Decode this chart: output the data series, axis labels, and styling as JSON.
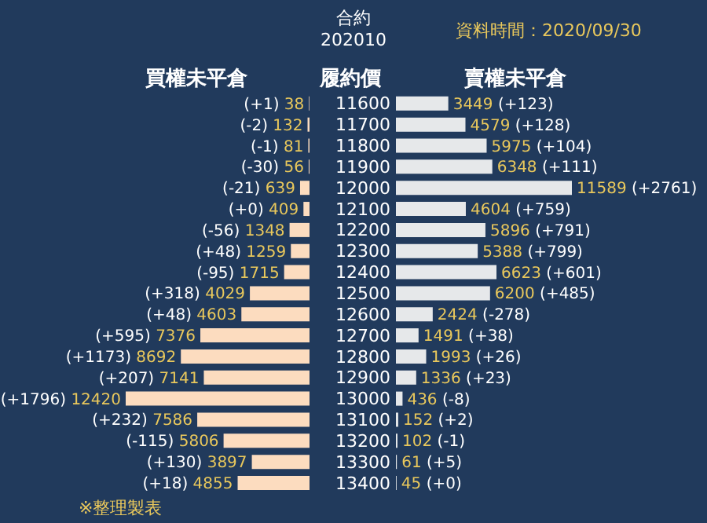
{
  "chart_data": [
    {
      "type": "bar",
      "orientation": "horizontal",
      "title": "合約",
      "subtitle": "202010",
      "xlabel": "買權未平倉",
      "ylabel": "履約價",
      "annotations": [
        "資料時間：2020/09/30",
        "※整理製表"
      ],
      "tick_labels": "y",
      "categories": [
        "11600",
        "11700",
        "11800",
        "11900",
        "12000",
        "12100",
        "12200",
        "12300",
        "12400",
        "12500",
        "12600",
        "12700",
        "12800",
        "12900",
        "13000",
        "13100",
        "13200",
        "13300",
        "13400"
      ],
      "series": [
        {
          "color": "#fcdcbf",
          "values": [
            38,
            132,
            81,
            56,
            639,
            409,
            1348,
            1259,
            1715,
            4029,
            4603,
            7376,
            8692,
            7141,
            12420,
            7586,
            5806,
            3897,
            4855
          ],
          "value_labels": [
            "(+1) 38",
            "(-2) 132",
            "(-1) 81",
            "(-30) 56",
            "(-21) 639",
            "(+0) 409",
            "(-56) 1348",
            "(+48) 1259",
            "(-95) 1715",
            "(+318) 4029",
            "(+48) 4603",
            "(+595) 7376",
            "(+1173) 8692",
            "(+207) 7141",
            "(+1796) 12420",
            "(+232) 7586",
            "(-115) 5806",
            "(+130) 3897",
            "(+18) 4855"
          ]
        }
      ]
    },
    {
      "type": "bar",
      "orientation": "horizontal",
      "xlabel": "賣權未平倉",
      "tick_labels": false,
      "categories": [
        "11600",
        "11700",
        "11800",
        "11900",
        "12000",
        "12100",
        "12200",
        "12300",
        "12400",
        "12500",
        "12600",
        "12700",
        "12800",
        "12900",
        "13000",
        "13100",
        "13200",
        "13300",
        "13400"
      ],
      "series": [
        {
          "color": "#e6e8ea",
          "values": [
            3449,
            4579,
            5975,
            6348,
            11589,
            4604,
            5896,
            5388,
            6623,
            6200,
            2424,
            1491,
            1993,
            1336,
            436,
            152,
            102,
            61,
            45
          ],
          "value_labels": [
            "3449 (+123)",
            "4579 (+128)",
            "5975 (+104)",
            "6348 (+111)",
            "11589 (+2761)",
            "4604 (+759)",
            "5896 (+791)",
            "5388 (+799)",
            "6623 (+601)",
            "6200 (+485)",
            "2424 (-278)",
            "1491 (+38)",
            "1993 (+26)",
            "1336 (+23)",
            "436 (-8)",
            "152 (+2)",
            "102 (-1)",
            "61 (+5)",
            "45 (+0)"
          ]
        }
      ]
    }
  ]
}
